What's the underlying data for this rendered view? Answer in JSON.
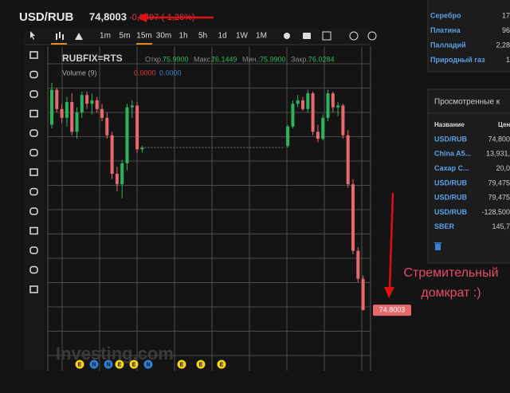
{
  "header": {
    "symbol": "USD/RUB",
    "price": "74,8003",
    "change": "-0,9497 (-1,26%)"
  },
  "toolbar": {
    "timeframes": [
      "1m",
      "5m",
      "15m",
      "30m",
      "1h",
      "5h",
      "1d",
      "1W",
      "1M"
    ]
  },
  "chart": {
    "type": "candlestick",
    "symbol": "RUBFIX=RTS",
    "legend": [
      {
        "label": "Откр.:",
        "value": "75.9900"
      },
      {
        "label": "Макс.:",
        "value": "76.1449"
      },
      {
        "label": "Мин.:",
        "value": "75.9900"
      },
      {
        "label": "Закр.:",
        "value": "76.0284"
      }
    ],
    "volume": {
      "label": "Volume (9)",
      "values": [
        "0.0000",
        "0.0000"
      ]
    },
    "ylim": [
      74.5,
      76.3
    ],
    "up_color": "#2bb55a",
    "down_color": "#e8696c",
    "candles": [
      [
        75.86,
        76.1,
        75.84,
        76.06
      ],
      [
        76.06,
        76.07,
        75.93,
        75.95
      ],
      [
        75.95,
        75.98,
        75.87,
        75.9
      ],
      [
        75.9,
        76.02,
        75.85,
        75.99
      ],
      [
        75.99,
        76.04,
        75.8,
        75.82
      ],
      [
        75.82,
        75.96,
        75.78,
        75.93
      ],
      [
        75.93,
        76.05,
        75.9,
        76.03
      ],
      [
        76.03,
        76.05,
        75.95,
        75.98
      ],
      [
        75.98,
        76.04,
        75.92,
        76.0
      ],
      [
        76.0,
        76.02,
        75.93,
        75.95
      ],
      [
        75.95,
        75.98,
        75.88,
        75.9
      ],
      [
        75.9,
        75.93,
        75.78,
        75.8
      ],
      [
        75.8,
        75.82,
        75.55,
        75.58
      ],
      [
        75.58,
        75.62,
        75.48,
        75.52
      ],
      [
        75.52,
        75.66,
        75.44,
        75.64
      ],
      [
        75.64,
        75.98,
        75.6,
        75.96
      ],
      [
        75.96,
        76.0,
        75.9,
        75.97
      ],
      [
        75.97,
        75.99,
        75.7,
        75.72
      ],
      [
        75.72,
        75.74,
        75.7,
        75.73
      ],
      null,
      null,
      null,
      null,
      null,
      null,
      null,
      null,
      null,
      null,
      null,
      null,
      null,
      null,
      null,
      null,
      null,
      null,
      null,
      null,
      null,
      null,
      null,
      null,
      null,
      null,
      null,
      null,
      [
        75.74,
        75.86,
        75.73,
        75.85
      ],
      [
        75.85,
        76.0,
        75.84,
        75.98
      ],
      [
        75.98,
        76.03,
        75.96,
        76.0
      ],
      [
        76.0,
        76.02,
        75.94,
        75.95
      ],
      [
        75.95,
        76.06,
        75.93,
        76.04
      ],
      [
        76.04,
        76.05,
        75.8,
        75.82
      ],
      [
        75.82,
        75.86,
        75.76,
        75.78
      ],
      [
        75.78,
        75.92,
        75.77,
        75.9
      ],
      [
        75.9,
        76.06,
        75.88,
        76.04
      ],
      [
        76.04,
        76.05,
        75.93,
        75.96
      ],
      [
        75.96,
        75.99,
        75.91,
        75.97
      ],
      [
        75.97,
        75.98,
        75.78,
        75.8
      ],
      [
        75.8,
        75.83,
        75.5,
        75.52
      ],
      [
        75.52,
        75.55,
        75.12,
        75.14
      ],
      [
        75.14,
        75.16,
        74.96,
        74.98
      ],
      [
        74.98,
        75.0,
        74.8,
        74.8003
      ]
    ],
    "last_label": "74.8003",
    "watermark": "Investing.com",
    "events": [
      {
        "label": "E",
        "color": "#f2d21b"
      },
      {
        "label": "N",
        "color": "#2a7fd6"
      },
      {
        "label": "N",
        "color": "#2a7fd6"
      },
      {
        "label": "E",
        "color": "#f2d21b"
      },
      {
        "label": "E",
        "color": "#f2d21b"
      },
      {
        "label": "N",
        "color": "#2a7fd6"
      },
      {
        "label": "E",
        "color": "#f2d21b"
      },
      {
        "label": "E",
        "color": "#f2d21b"
      },
      {
        "label": "E",
        "color": "#f2d21b"
      }
    ]
  },
  "annotation": [
    "Стремительный",
    "домкрат :)"
  ],
  "commodities": {
    "rows": [
      [
        "Серебро",
        "17"
      ],
      [
        "Платина",
        "96"
      ],
      [
        "Палладий",
        "2,28"
      ],
      [
        "Природный газ",
        "1"
      ]
    ]
  },
  "viewed": {
    "title": "Просмотренные к",
    "headers": [
      "Название",
      "Цен"
    ],
    "rows": [
      [
        "USD/RUB",
        "74,800"
      ],
      [
        "China A5...",
        "13,931,"
      ],
      [
        "Сахар С...",
        "20,0"
      ],
      [
        "USD/RUB",
        "79,475"
      ],
      [
        "USD/RUB",
        "79,475"
      ],
      [
        "USD/RUB",
        "-128,500"
      ],
      [
        "SBER",
        "145,7"
      ]
    ]
  }
}
